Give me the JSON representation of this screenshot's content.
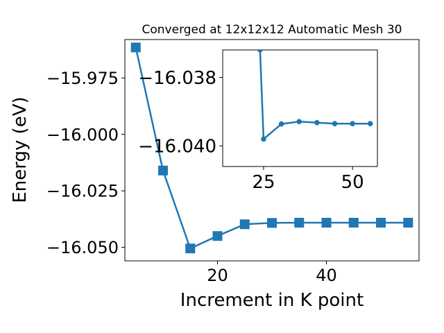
{
  "chart_data": [
    {
      "type": "line",
      "title": "Converged at 12x12x12 Automatic Mesh 30",
      "xlabel": "Increment in K point",
      "ylabel": "Energy (eV)",
      "xlim": [
        3,
        57
      ],
      "ylim": [
        -16.056,
        -15.958
      ],
      "xticks": [
        20,
        40
      ],
      "yticks": [
        -16.05,
        -16.025,
        -16.0,
        -15.975
      ],
      "ytick_labels": [
        "−16.050",
        "−16.025",
        "−16.000",
        "−15.975"
      ],
      "xtick_labels": [
        "20",
        "40"
      ],
      "marker": "square",
      "color": "#1f77b4",
      "grid": false,
      "series": [
        {
          "x": [
            5,
            10,
            15,
            20,
            25,
            30,
            35,
            40,
            45,
            50,
            55
          ],
          "y": [
            -15.9615,
            -16.016,
            -16.0505,
            -16.045,
            -16.0398,
            -16.0392,
            -16.0391,
            -16.0391,
            -16.0391,
            -16.0391,
            -16.0391
          ]
        }
      ]
    },
    {
      "type": "line",
      "title": "",
      "xlabel": "",
      "ylabel": "",
      "xlim": [
        13.5,
        57
      ],
      "ylim": [
        -16.0406,
        -16.0372
      ],
      "xticks": [
        25,
        50
      ],
      "yticks": [
        -16.04,
        -16.038
      ],
      "ytick_labels": [
        "−16.040",
        "−16.038"
      ],
      "xtick_labels": [
        "25",
        "50"
      ],
      "marker": "circle",
      "color": "#1f77b4",
      "grid": false,
      "series": [
        {
          "x": [
            24,
            25,
            30,
            35,
            40,
            45,
            50,
            55
          ],
          "y": [
            -16.0372,
            -16.0398,
            -16.03936,
            -16.03929,
            -16.03932,
            -16.03935,
            -16.03935,
            -16.03935
          ]
        }
      ]
    }
  ]
}
